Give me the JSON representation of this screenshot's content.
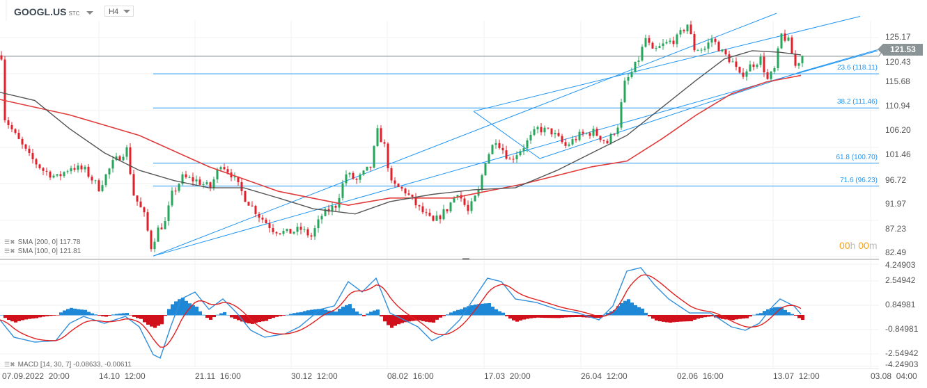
{
  "header": {
    "symbol": "GOOGL.US",
    "symbol_suffix": "STC",
    "timeframe": "H4"
  },
  "price_tag": "121.53",
  "timer": {
    "h": "00",
    "h_unit": "h",
    "m": "00",
    "m_unit": "m"
  },
  "legend": {
    "sma200": "SMA [200, 0] 117.78",
    "sma100": "SMA [100, 0] 121.81",
    "macd": "MACD [14, 30, 7] -0.08633, -0.00611"
  },
  "price_axis": [
    "125.17",
    "120.43",
    "115.68",
    "110.94",
    "106.20",
    "101.46",
    "96.72",
    "91.97",
    "87.23",
    "82.49"
  ],
  "macd_axis": [
    "4.24903",
    "2.54942",
    "0.84981",
    "-0.84981",
    "-2.54942",
    "-4.24903"
  ],
  "time_axis": [
    "07.09.2022  20:00",
    "14.10  12:00",
    "21.11  16:00",
    "30.12  12:00",
    "08.02  16:00",
    "17.03  20:00",
    "26.04  12:00",
    "02.06  16:00",
    "13.07  12:00",
    "03.08  04:00"
  ],
  "fib_levels": [
    {
      "label": "23.6 (118.11)",
      "price": 118.11
    },
    {
      "label": "38.2 (111.46)",
      "price": 111.46
    },
    {
      "label": "61.8 (100.70)",
      "price": 100.7
    },
    {
      "label": "71.6 (96.23)",
      "price": 96.23
    }
  ],
  "colors": {
    "up": "#26a65b",
    "down": "#e0202a",
    "sma200": "#e03a3a",
    "sma100": "#555555",
    "drawing": "#2196f3",
    "macd": "#2f8fdd",
    "signal": "#e02020",
    "hist_up": "#1e88d6",
    "hist_down": "#d0101a"
  },
  "chart_data": {
    "type": "candlestick",
    "close_path": [
      [
        1,
        109.5
      ],
      [
        4,
        106.1
      ],
      [
        8,
        102.0
      ],
      [
        12,
        99.3
      ],
      [
        16,
        97.9
      ],
      [
        20,
        100.0
      ],
      [
        24,
        99.3
      ],
      [
        28,
        95.9
      ],
      [
        32,
        100.7
      ],
      [
        36,
        103.4
      ],
      [
        38,
        94.6
      ],
      [
        41,
        90.5
      ],
      [
        43,
        84.4
      ],
      [
        45,
        87.8
      ],
      [
        47,
        89.1
      ],
      [
        49,
        94.6
      ],
      [
        52,
        97.9
      ],
      [
        56,
        97.3
      ],
      [
        60,
        95.9
      ],
      [
        63,
        100.7
      ],
      [
        66,
        98.6
      ],
      [
        70,
        93.9
      ],
      [
        74,
        90.5
      ],
      [
        78,
        87.8
      ],
      [
        82,
        87.1
      ],
      [
        86,
        87.8
      ],
      [
        89,
        86.4
      ],
      [
        92,
        90.5
      ],
      [
        96,
        92.5
      ],
      [
        99,
        98.6
      ],
      [
        102,
        97.3
      ],
      [
        106,
        100.0
      ],
      [
        108,
        106.8
      ],
      [
        110,
        104.0
      ],
      [
        112,
        96.6
      ],
      [
        116,
        95.2
      ],
      [
        120,
        91.8
      ],
      [
        124,
        89.1
      ],
      [
        128,
        91.8
      ],
      [
        131,
        95.2
      ],
      [
        134,
        91.2
      ],
      [
        137,
        95.2
      ],
      [
        139,
        101.3
      ],
      [
        142,
        105.4
      ],
      [
        146,
        101.3
      ],
      [
        150,
        104.0
      ],
      [
        154,
        107.4
      ],
      [
        158,
        106.8
      ],
      [
        162,
        104.0
      ],
      [
        166,
        106.1
      ],
      [
        170,
        106.8
      ],
      [
        174,
        104.7
      ],
      [
        177,
        108.1
      ],
      [
        179,
        116.2
      ],
      [
        181,
        118.3
      ],
      [
        183,
        121.0
      ],
      [
        185,
        125.0
      ],
      [
        187,
        122.3
      ],
      [
        190,
        123.7
      ],
      [
        194,
        125.0
      ],
      [
        197,
        127.8
      ],
      [
        199,
        123.0
      ],
      [
        202,
        123.0
      ],
      [
        204,
        125.0
      ],
      [
        207,
        122.3
      ],
      [
        210,
        120.3
      ],
      [
        212,
        117.6
      ],
      [
        215,
        119.6
      ],
      [
        218,
        121.0
      ],
      [
        220,
        116.9
      ],
      [
        222,
        118.9
      ],
      [
        224,
        125.7
      ],
      [
        226,
        124.4
      ],
      [
        228,
        119.6
      ],
      [
        230,
        121.7
      ]
    ],
    "sma200": [
      [
        0,
        113.1
      ],
      [
        20,
        110.1
      ],
      [
        40,
        106.1
      ],
      [
        60,
        100.0
      ],
      [
        80,
        95.2
      ],
      [
        100,
        92.5
      ],
      [
        112,
        93.9
      ],
      [
        130,
        93.9
      ],
      [
        150,
        96.6
      ],
      [
        170,
        100.0
      ],
      [
        180,
        101.1
      ],
      [
        190,
        105.4
      ],
      [
        200,
        110.1
      ],
      [
        210,
        114.2
      ],
      [
        220,
        116.5
      ],
      [
        230,
        117.8
      ]
    ],
    "sma100": [
      [
        0,
        114.5
      ],
      [
        10,
        112.9
      ],
      [
        20,
        107.4
      ],
      [
        30,
        102.7
      ],
      [
        40,
        99.3
      ],
      [
        50,
        97.3
      ],
      [
        60,
        95.9
      ],
      [
        70,
        95.9
      ],
      [
        80,
        93.9
      ],
      [
        90,
        91.8
      ],
      [
        102,
        90.8
      ],
      [
        112,
        93.2
      ],
      [
        124,
        94.6
      ],
      [
        136,
        95.5
      ],
      [
        148,
        95.9
      ],
      [
        160,
        99.3
      ],
      [
        170,
        102.7
      ],
      [
        180,
        106.1
      ],
      [
        190,
        111.5
      ],
      [
        200,
        116.9
      ],
      [
        208,
        121.0
      ],
      [
        216,
        122.6
      ],
      [
        224,
        122.3
      ],
      [
        230,
        121.8
      ]
    ],
    "trendlines": [
      [
        [
          44,
          82.6
        ],
        [
          223,
          129.9
        ]
      ],
      [
        [
          44,
          82.6
        ],
        [
          252,
          122.6
        ]
      ],
      [
        [
          136,
          110.8
        ],
        [
          247,
          129.3
        ]
      ],
      [
        [
          136,
          110.8
        ],
        [
          155,
          101.6
        ]
      ],
      [
        [
          155,
          101.6
        ],
        [
          230,
          118.5
        ]
      ],
      [
        [
          230,
          118.5
        ],
        [
          252,
          122.8
        ]
      ]
    ],
    "current_price": 121.53,
    "ylim": [
      82.49,
      127.0
    ],
    "macd": [
      [
        0,
        -0.41
      ],
      [
        4,
        -1.86
      ],
      [
        10,
        -2.27
      ],
      [
        16,
        -2.15
      ],
      [
        20,
        -0.7
      ],
      [
        24,
        -0.12
      ],
      [
        30,
        -0.7
      ],
      [
        36,
        -0.12
      ],
      [
        40,
        -0.99
      ],
      [
        44,
        -3.32
      ],
      [
        46,
        -3.61
      ],
      [
        49,
        -0.99
      ],
      [
        52,
        1.34
      ],
      [
        56,
        1.92
      ],
      [
        60,
        0.47
      ],
      [
        64,
        1.34
      ],
      [
        68,
        0.17
      ],
      [
        72,
        -1.28
      ],
      [
        76,
        -1.86
      ],
      [
        82,
        -1.57
      ],
      [
        86,
        -0.99
      ],
      [
        92,
        0.47
      ],
      [
        96,
        0.76
      ],
      [
        100,
        2.79
      ],
      [
        104,
        1.92
      ],
      [
        108,
        3.08
      ],
      [
        112,
        0.17
      ],
      [
        116,
        -0.41
      ],
      [
        120,
        -0.99
      ],
      [
        124,
        -2.15
      ],
      [
        128,
        -1.57
      ],
      [
        132,
        -0.41
      ],
      [
        136,
        1.34
      ],
      [
        140,
        3.08
      ],
      [
        144,
        2.79
      ],
      [
        148,
        1.34
      ],
      [
        154,
        1.05
      ],
      [
        160,
        0.47
      ],
      [
        166,
        0.17
      ],
      [
        172,
        -0.41
      ],
      [
        176,
        0.76
      ],
      [
        180,
        3.67
      ],
      [
        184,
        3.96
      ],
      [
        188,
        2.5
      ],
      [
        192,
        1.34
      ],
      [
        198,
        0.17
      ],
      [
        204,
        0.17
      ],
      [
        210,
        -0.99
      ],
      [
        214,
        -1.28
      ],
      [
        218,
        -0.7
      ],
      [
        222,
        0.76
      ],
      [
        224,
        1.34
      ],
      [
        228,
        0.76
      ],
      [
        230,
        0.06
      ]
    ],
    "macd_ylim": [
      -4.24903,
      4.24903
    ]
  }
}
